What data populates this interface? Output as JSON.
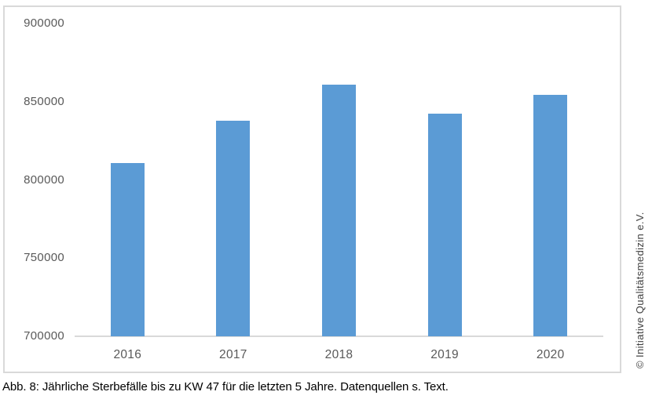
{
  "chart_data": {
    "type": "bar",
    "categories": [
      "2016",
      "2017",
      "2018",
      "2019",
      "2020"
    ],
    "values": [
      811000,
      838000,
      861000,
      842500,
      854500
    ],
    "title": "",
    "xlabel": "",
    "ylabel": "",
    "ylim": [
      700000,
      900000
    ],
    "ytick_step": 50000,
    "ytick_labels": [
      "700000",
      "750000",
      "800000",
      "850000",
      "900000"
    ],
    "grid": false,
    "legend": "none"
  },
  "caption": "Abb. 8: Jährliche Sterbefälle bis zu KW 47 für die letzten 5 Jahre. Datenquellen s. Text.",
  "copyright": "© Initiative Qualitätsmedizin e.V.",
  "colors": {
    "bar": "#5b9bd5",
    "axis_line": "#d9d9d9",
    "frame_border": "#d9d9d9",
    "tick_label": "#595959",
    "caption_text": "#000000",
    "copyright_text": "#404040"
  }
}
